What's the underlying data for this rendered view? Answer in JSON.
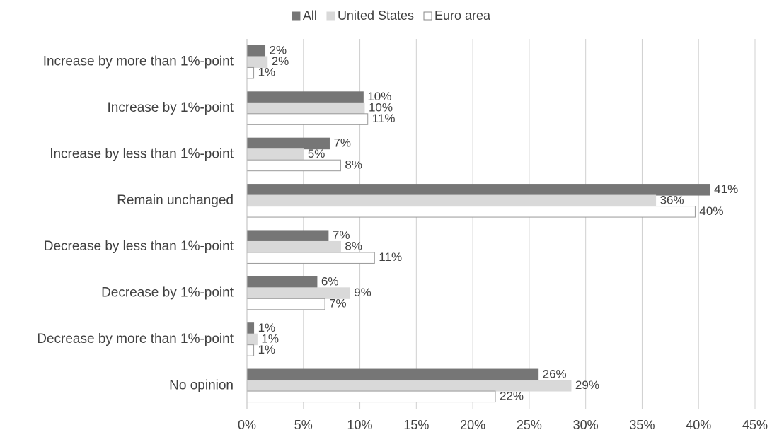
{
  "chart_data": {
    "type": "bar",
    "orientation": "horizontal",
    "categories": [
      "Increase by more than 1%-point",
      "Increase by 1%-point",
      "Increase by less than 1%-point",
      "Remain unchanged",
      "Decrease by less than 1%-point",
      "Decrease by 1%-point",
      "Decrease by more than 1%-point",
      "No opinion"
    ],
    "series": [
      {
        "name": "All",
        "color": "#767676",
        "values": [
          1.6,
          10.3,
          7.3,
          41.0,
          7.2,
          6.2,
          0.6,
          25.8
        ],
        "value_labels": [
          "2%",
          "10%",
          "7%",
          "41%",
          "7%",
          "6%",
          "1%",
          "26%"
        ]
      },
      {
        "name": "United States",
        "color": "#d9d9d9",
        "values": [
          1.8,
          10.4,
          5.0,
          36.2,
          8.3,
          9.1,
          0.9,
          28.7
        ],
        "value_labels": [
          "2%",
          "10%",
          "5%",
          "36%",
          "8%",
          "9%",
          "1%",
          "29%"
        ]
      },
      {
        "name": "Euro area",
        "color": "#ffffff",
        "values": [
          0.6,
          10.7,
          8.3,
          39.7,
          11.3,
          6.9,
          0.6,
          22.0
        ],
        "value_labels": [
          "1%",
          "11%",
          "8%",
          "40%",
          "11%",
          "7%",
          "1%",
          "22%"
        ]
      }
    ],
    "xlim": [
      0,
      45
    ],
    "xticks": [
      {
        "value": 0,
        "label": "0%"
      },
      {
        "value": 5,
        "label": "5%"
      },
      {
        "value": 10,
        "label": "10%"
      },
      {
        "value": 15,
        "label": "15%"
      },
      {
        "value": 20,
        "label": "20%"
      },
      {
        "value": 25,
        "label": "25%"
      },
      {
        "value": 30,
        "label": "30%"
      },
      {
        "value": 35,
        "label": "35%"
      },
      {
        "value": 40,
        "label": "40%"
      },
      {
        "value": 45,
        "label": "45%"
      }
    ],
    "grid": true,
    "legend": "top"
  }
}
